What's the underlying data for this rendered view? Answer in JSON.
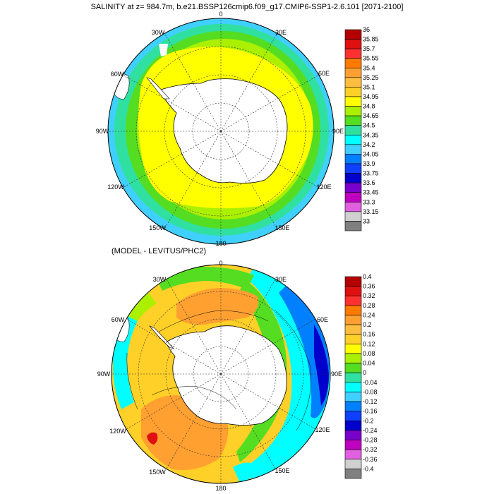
{
  "top_panel": {
    "title": "SALINITY at z= 984.7m, b.e21.BSSP126cmip6.f09_g17.CMIP6-SSP1-2.6.101 [2071-2100]",
    "longitude_labels": [
      "0",
      "30E",
      "60E",
      "90E",
      "120E",
      "150E",
      "180",
      "150W",
      "120W",
      "90W",
      "60W",
      "30W"
    ],
    "colorbar": {
      "labels": [
        "36",
        "35.85",
        "35.7",
        "35.55",
        "35.4",
        "35.25",
        "35.1",
        "34.95",
        "34.8",
        "34.65",
        "34.5",
        "34.35",
        "34.2",
        "34.05",
        "33.9",
        "33.75",
        "33.6",
        "33.45",
        "33.3",
        "33.15",
        "33"
      ],
      "colors": [
        "#b40000",
        "#e01010",
        "#ff3030",
        "#ff7a00",
        "#ffa030",
        "#ffbe40",
        "#ffd028",
        "#ffff00",
        "#aaf000",
        "#55dd22",
        "#30e0a0",
        "#00ffff",
        "#40d0ff",
        "#0080ff",
        "#1040ff",
        "#0000cc",
        "#7a00cc",
        "#c000c0",
        "#e060e0",
        "#d0d0d0",
        "#808080"
      ]
    }
  },
  "bottom_panel": {
    "title": "(MODEL - LEVITUS/PHC2)",
    "longitude_labels": [
      "0",
      "30E",
      "60E",
      "90E",
      "120E",
      "150E",
      "180",
      "150W",
      "120W",
      "90W",
      "60W",
      "30W"
    ],
    "colorbar": {
      "labels": [
        "0.4",
        "0.36",
        "0.32",
        "0.28",
        "0.24",
        "0.2",
        "0.16",
        "0.12",
        "0.08",
        "0.04",
        "0",
        "-0.04",
        "-0.08",
        "-0.12",
        "-0.16",
        "-0.2",
        "-0.24",
        "-0.28",
        "-0.32",
        "-0.36",
        "-0.4"
      ],
      "colors": [
        "#b40000",
        "#e01010",
        "#ff3030",
        "#ff7a00",
        "#ffa030",
        "#ffbe40",
        "#ffd028",
        "#ffff00",
        "#aaf000",
        "#55dd22",
        "#30e0a0",
        "#00ffff",
        "#40d0ff",
        "#0080ff",
        "#1040ff",
        "#0000cc",
        "#7a00cc",
        "#c000c0",
        "#e060e0",
        "#d0d0d0",
        "#808080"
      ]
    }
  },
  "colors": {
    "land": "#ffffff",
    "outline": "#000000",
    "grid": "#333333"
  }
}
